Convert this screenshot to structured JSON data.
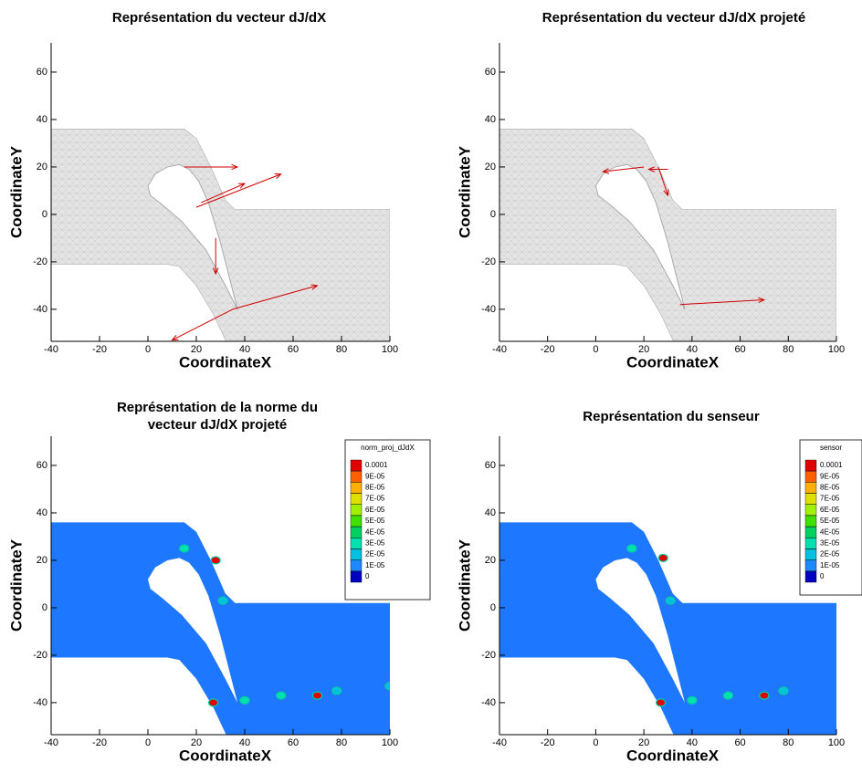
{
  "chart_data": [
    {
      "type": "vector",
      "title": [
        "Représentation du vecteur dJ/dX"
      ],
      "xlabel": "CoordinateX",
      "ylabel": "CoordinateY",
      "xlim": [
        -40,
        100
      ],
      "ylim": [
        -53.5,
        72.3
      ],
      "xticks": [
        -40,
        -20,
        0,
        20,
        40,
        60,
        80,
        100
      ],
      "yticks": [
        -40,
        -20,
        0,
        20,
        40,
        60
      ],
      "color": "#d00000",
      "vectors": {
        "x": [
          20,
          15,
          35,
          35,
          22,
          28
        ],
        "y": [
          3,
          20,
          -40,
          -40,
          5,
          -10
        ],
        "u": [
          35,
          22,
          35,
          -25,
          18,
          0
        ],
        "v": [
          14,
          0,
          10,
          -13,
          8,
          -15
        ]
      }
    },
    {
      "type": "vector",
      "title": [
        "Représentation du vecteur dJ/dX projeté"
      ],
      "xlabel": "CoordinateX",
      "ylabel": "CoordinateY",
      "xlim": [
        -40,
        100
      ],
      "ylim": [
        -53.5,
        72.3
      ],
      "xticks": [
        -40,
        -20,
        0,
        20,
        40,
        60,
        80,
        100
      ],
      "yticks": [
        -40,
        -20,
        0,
        20,
        40,
        60
      ],
      "color": "#d00000",
      "vectors": {
        "x": [
          20,
          26,
          35,
          30
        ],
        "y": [
          20,
          20,
          -38,
          19
        ],
        "u": [
          -17,
          4,
          35,
          -8
        ],
        "v": [
          -2,
          -12,
          2,
          0
        ]
      }
    },
    {
      "type": "contour",
      "title": [
        "Représentation de la norme du",
        "vecteur dJ/dX projeté"
      ],
      "xlabel": "CoordinateX",
      "ylabel": "CoordinateY",
      "xlim": [
        -40,
        100
      ],
      "ylim": [
        -53.5,
        72.3
      ],
      "xticks": [
        -40,
        -20,
        0,
        20,
        40,
        60,
        80,
        100
      ],
      "yticks": [
        -40,
        -20,
        0,
        20,
        40,
        60
      ],
      "legend_title": "norm_proj_dJdX",
      "levels": [
        0.0001,
        {
          "value": 9e-05,
          "label": "9E-05"
        },
        {
          "value": 8e-05,
          "label": "8E-05"
        },
        {
          "value": 7e-05,
          "label": "7E-05"
        },
        {
          "value": 6e-05,
          "label": "6E-05"
        },
        {
          "value": 5e-05,
          "label": "5E-05"
        },
        {
          "value": 4e-05,
          "label": "4E-05"
        },
        {
          "value": 3e-05,
          "label": "3E-05"
        },
        {
          "value": 2e-05,
          "label": "2E-05"
        },
        {
          "value": 1e-05,
          "label": "1E-05"
        },
        0
      ],
      "colors": [
        "#e00000",
        "#ff6000",
        "#ffb000",
        "#e0e000",
        "#a0f000",
        "#40e000",
        "#00d060",
        "#00e0b0",
        "#00c0e0",
        "#1e88ff",
        "#0000c0"
      ],
      "hotspots": {
        "x": [
          28,
          15,
          27,
          70,
          40,
          55,
          78,
          100,
          31
        ],
        "y": [
          20,
          25,
          -40,
          -37,
          -39,
          -37,
          -35,
          -33,
          3
        ],
        "values": [
          0.0001,
          3e-05,
          0.0001,
          0.0001,
          3e-05,
          3e-05,
          2e-05,
          2e-05,
          2e-05
        ]
      }
    },
    {
      "type": "contour",
      "title": [
        "Représentation du senseur"
      ],
      "xlabel": "CoordinateX",
      "ylabel": "CoordinateY",
      "xlim": [
        -40,
        100
      ],
      "ylim": [
        -53.5,
        72.3
      ],
      "xticks": [
        -40,
        -20,
        0,
        20,
        40,
        60,
        80,
        100
      ],
      "yticks": [
        -40,
        -20,
        0,
        20,
        40,
        60
      ],
      "legend_title": "sensor",
      "levels": [
        0.0001,
        {
          "value": 9e-05,
          "label": "9E-05"
        },
        {
          "value": 8e-05,
          "label": "8E-05"
        },
        {
          "value": 7e-05,
          "label": "7E-05"
        },
        {
          "value": 6e-05,
          "label": "6E-05"
        },
        {
          "value": 5e-05,
          "label": "5E-05"
        },
        {
          "value": 4e-05,
          "label": "4E-05"
        },
        {
          "value": 3e-05,
          "label": "3E-05"
        },
        {
          "value": 2e-05,
          "label": "2E-05"
        },
        {
          "value": 1e-05,
          "label": "1E-05"
        },
        0
      ],
      "colors": [
        "#e00000",
        "#ff6000",
        "#ffb000",
        "#e0e000",
        "#a0f000",
        "#40e000",
        "#00d060",
        "#00e0b0",
        "#00c0e0",
        "#1e88ff",
        "#0000c0"
      ],
      "hotspots": {
        "x": [
          28,
          15,
          27,
          70,
          40,
          55,
          78,
          31
        ],
        "y": [
          21,
          25,
          -40,
          -37,
          -39,
          -37,
          -35,
          3
        ],
        "values": [
          0.0001,
          3e-05,
          0.0001,
          0.0001,
          3e-05,
          3e-05,
          2e-05,
          2e-05
        ]
      }
    }
  ]
}
